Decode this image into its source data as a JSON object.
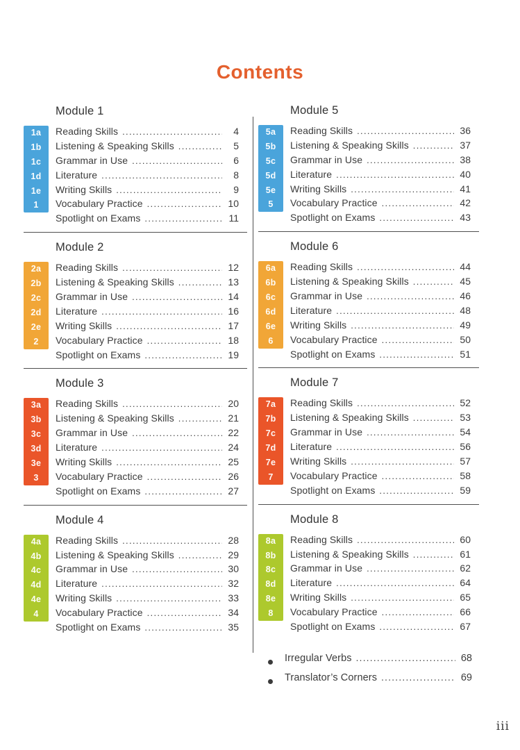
{
  "page": {
    "title": "Contents",
    "footer_page_number": "iii"
  },
  "colors": {
    "title_accent": "#e4602e",
    "module_1_5_tab": "#4aa4db",
    "module_2_6_tab": "#f1a637",
    "module_3_7_tab": "#ea5529",
    "module_4_8_tab": "#adc92d",
    "text": "#3b3b3b",
    "rule_lines": "#4e4e4e"
  },
  "modules": [
    {
      "name": "Module 1",
      "tab_color": "#4aa4db",
      "column": "left",
      "entries": [
        {
          "tab": "1a",
          "label": "Reading Skills",
          "page": "4"
        },
        {
          "tab": "1b",
          "label": "Listening & Speaking Skills",
          "page": "5"
        },
        {
          "tab": "1c",
          "label": "Grammar in Use",
          "page": "6"
        },
        {
          "tab": "1d",
          "label": "Literature",
          "page": "8"
        },
        {
          "tab": "1e",
          "label": "Writing Skills",
          "page": "9"
        },
        {
          "tab": "1",
          "label": "Vocabulary Practice",
          "page": "10"
        },
        {
          "tab": "",
          "label": "Spotlight on Exams",
          "page": "11"
        }
      ]
    },
    {
      "name": "Module 2",
      "tab_color": "#f1a637",
      "column": "left",
      "entries": [
        {
          "tab": "2a",
          "label": "Reading Skills",
          "page": "12"
        },
        {
          "tab": "2b",
          "label": "Listening & Speaking Skills",
          "page": "13"
        },
        {
          "tab": "2c",
          "label": "Grammar in Use",
          "page": "14"
        },
        {
          "tab": "2d",
          "label": "Literature",
          "page": "16"
        },
        {
          "tab": "2e",
          "label": "Writing Skills",
          "page": "17"
        },
        {
          "tab": "2",
          "label": "Vocabulary Practice",
          "page": "18"
        },
        {
          "tab": "",
          "label": "Spotlight on Exams",
          "page": "19"
        }
      ]
    },
    {
      "name": "Module 3",
      "tab_color": "#ea5529",
      "column": "left",
      "entries": [
        {
          "tab": "3a",
          "label": "Reading Skills",
          "page": "20"
        },
        {
          "tab": "3b",
          "label": "Listening & Speaking Skills",
          "page": "21"
        },
        {
          "tab": "3c",
          "label": "Grammar in Use",
          "page": "22"
        },
        {
          "tab": "3d",
          "label": "Literature",
          "page": "24"
        },
        {
          "tab": "3e",
          "label": "Writing Skills",
          "page": "25"
        },
        {
          "tab": "3",
          "label": "Vocabulary Practice",
          "page": "26"
        },
        {
          "tab": "",
          "label": "Spotlight on Exams",
          "page": "27"
        }
      ]
    },
    {
      "name": "Module 4",
      "tab_color": "#adc92d",
      "column": "left",
      "entries": [
        {
          "tab": "4a",
          "label": "Reading Skills",
          "page": "28"
        },
        {
          "tab": "4b",
          "label": "Listening & Speaking Skills",
          "page": "29"
        },
        {
          "tab": "4c",
          "label": "Grammar in Use",
          "page": "30"
        },
        {
          "tab": "4d",
          "label": "Literature",
          "page": "32"
        },
        {
          "tab": "4e",
          "label": "Writing Skills",
          "page": "33"
        },
        {
          "tab": "4",
          "label": "Vocabulary Practice",
          "page": "34"
        },
        {
          "tab": "",
          "label": "Spotlight on Exams",
          "page": "35"
        }
      ]
    },
    {
      "name": "Module 5",
      "tab_color": "#4aa4db",
      "column": "right",
      "entries": [
        {
          "tab": "5a",
          "label": "Reading Skills",
          "page": "36"
        },
        {
          "tab": "5b",
          "label": "Listening & Speaking Skills",
          "page": "37"
        },
        {
          "tab": "5c",
          "label": "Grammar in Use",
          "page": "38"
        },
        {
          "tab": "5d",
          "label": "Literature",
          "page": "40"
        },
        {
          "tab": "5e",
          "label": "Writing Skills",
          "page": "41"
        },
        {
          "tab": "5",
          "label": "Vocabulary Practice",
          "page": "42"
        },
        {
          "tab": "",
          "label": "Spotlight on Exams",
          "page": "43"
        }
      ]
    },
    {
      "name": "Module 6",
      "tab_color": "#f1a637",
      "column": "right",
      "entries": [
        {
          "tab": "6a",
          "label": "Reading Skills",
          "page": "44"
        },
        {
          "tab": "6b",
          "label": "Listening & Speaking Skills",
          "page": "45"
        },
        {
          "tab": "6c",
          "label": "Grammar in Use",
          "page": "46"
        },
        {
          "tab": "6d",
          "label": "Literature",
          "page": "48"
        },
        {
          "tab": "6e",
          "label": "Writing Skills",
          "page": "49"
        },
        {
          "tab": "6",
          "label": "Vocabulary Practice",
          "page": "50"
        },
        {
          "tab": "",
          "label": "Spotlight on Exams",
          "page": "51"
        }
      ]
    },
    {
      "name": "Module 7",
      "tab_color": "#ea5529",
      "column": "right",
      "entries": [
        {
          "tab": "7a",
          "label": "Reading Skills",
          "page": "52"
        },
        {
          "tab": "7b",
          "label": "Listening & Speaking Skills",
          "page": "53"
        },
        {
          "tab": "7c",
          "label": "Grammar in Use",
          "page": "54"
        },
        {
          "tab": "7d",
          "label": "Literature",
          "page": "56"
        },
        {
          "tab": "7e",
          "label": "Writing Skills",
          "page": "57"
        },
        {
          "tab": "7",
          "label": "Vocabulary Practice",
          "page": "58"
        },
        {
          "tab": "",
          "label": "Spotlight on Exams",
          "page": "59"
        }
      ]
    },
    {
      "name": "Module 8",
      "tab_color": "#adc92d",
      "column": "right",
      "entries": [
        {
          "tab": "8a",
          "label": "Reading Skills",
          "page": "60"
        },
        {
          "tab": "8b",
          "label": "Listening & Speaking Skills",
          "page": "61"
        },
        {
          "tab": "8c",
          "label": "Grammar in Use",
          "page": "62"
        },
        {
          "tab": "8d",
          "label": "Literature",
          "page": "64"
        },
        {
          "tab": "8e",
          "label": "Writing Skills",
          "page": "65"
        },
        {
          "tab": "8",
          "label": "Vocabulary Practice",
          "page": "66"
        },
        {
          "tab": "",
          "label": "Spotlight on Exams",
          "page": "67"
        }
      ]
    }
  ],
  "extras": [
    {
      "label": "Irregular Verbs",
      "page": "68"
    },
    {
      "label": "Translator’s Corners",
      "page": "69"
    }
  ]
}
